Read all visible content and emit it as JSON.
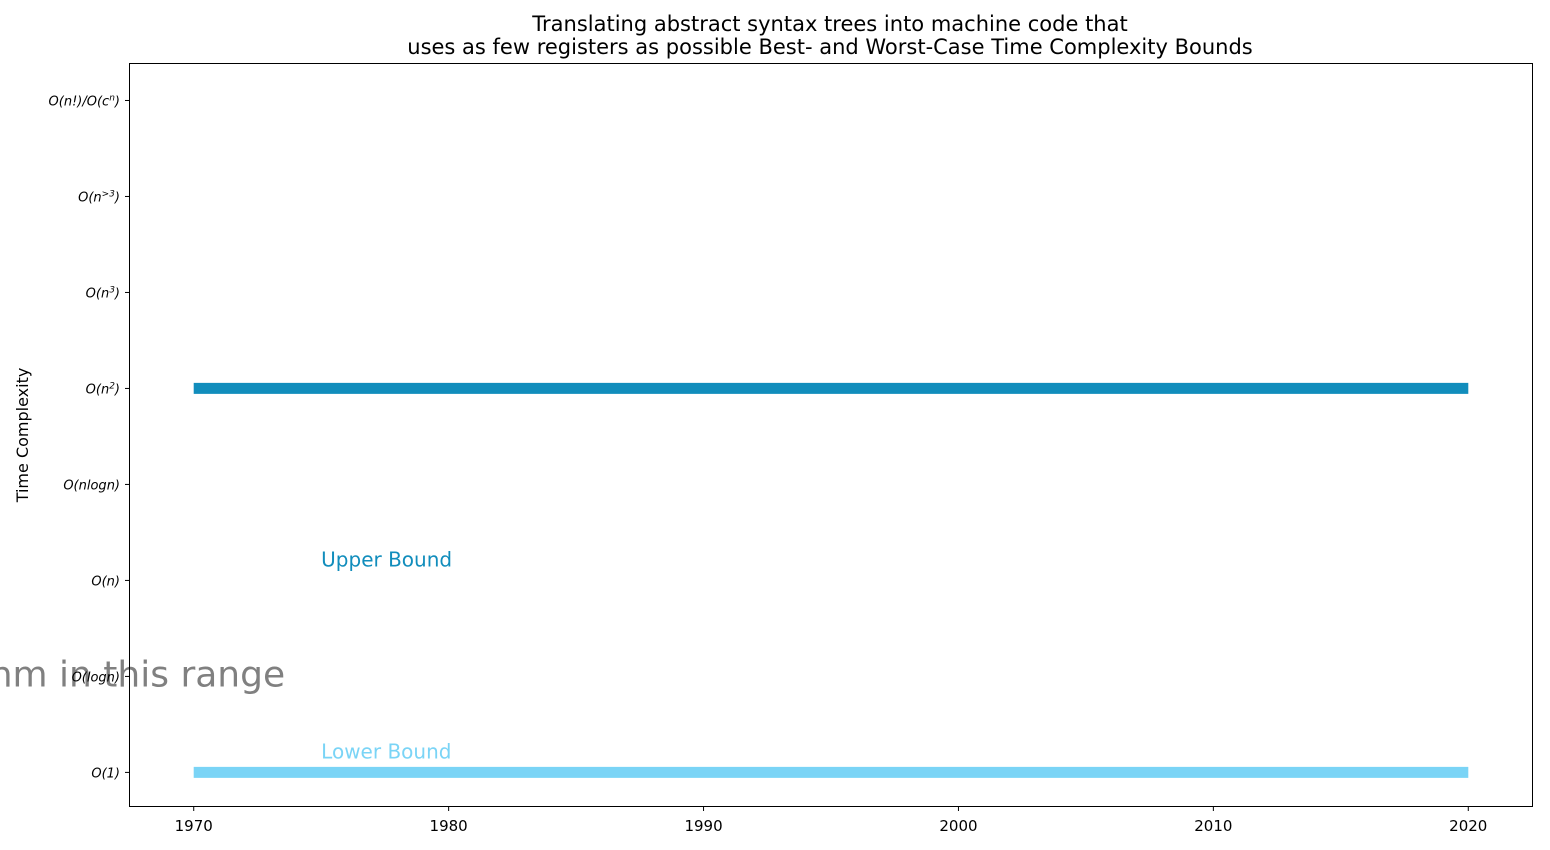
{
  "chart_data": {
    "type": "line",
    "title": [
      "Translating abstract syntax trees into machine code that",
      "uses as few registers as possible Best- and Worst-Case Time Complexity Bounds"
    ],
    "ylabel": "Time Complexity",
    "xlim": [
      1967.5,
      2022.5
    ],
    "ylim": [
      -0.35,
      7.38
    ],
    "x_ticks": [
      1970,
      1980,
      1990,
      2000,
      2010,
      2020
    ],
    "y_ticks": [
      {
        "value": 0,
        "label": "O(1)"
      },
      {
        "value": 1,
        "label": "O(logn)"
      },
      {
        "value": 2,
        "label": "O(n)"
      },
      {
        "value": 3,
        "label": "O(nlogn)"
      },
      {
        "value": 4,
        "label": "O(n^2)"
      },
      {
        "value": 5,
        "label": "O(n^3)"
      },
      {
        "value": 6,
        "label": "O(n^>3)"
      },
      {
        "value": 7,
        "label": "O(n!)/O(c^n)"
      }
    ],
    "series": [
      {
        "name": "Upper Bound",
        "color": "#118dbc",
        "x": [
          1970,
          2020
        ],
        "y": [
          4,
          4
        ]
      },
      {
        "name": "Lower Bound",
        "color": "#7ad4f6",
        "x": [
          1970,
          2020
        ],
        "y": [
          0,
          0
        ]
      }
    ],
    "annotations": [
      {
        "text": "Upper Bound",
        "x": 1975,
        "y": 2.2,
        "color": "#118dbc"
      },
      {
        "text": "Lower Bound",
        "x": 1975,
        "y": 0.2,
        "color": "#7ad4f6"
      },
      {
        "text": "Optimal algorithm in this range",
        "x": 1962.5,
        "y": 1.0,
        "color": "#808080"
      }
    ]
  }
}
